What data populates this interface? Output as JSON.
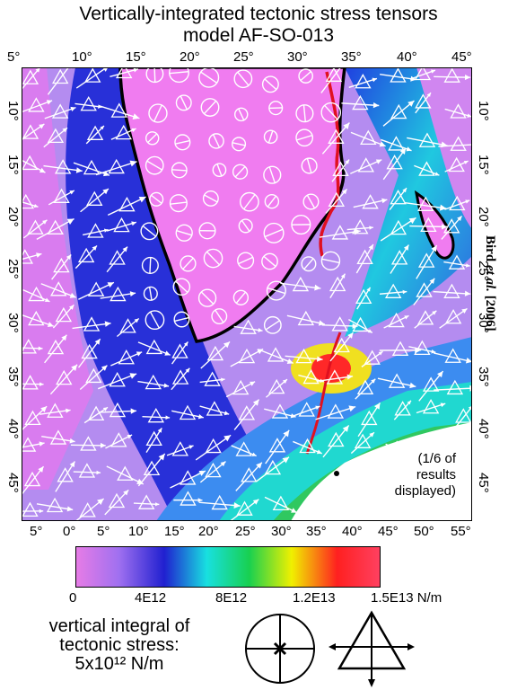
{
  "title": {
    "line1": "Vertically-integrated tectonic stress tensors",
    "line2": "model AF-SO-013"
  },
  "axes": {
    "top_longitudes": [
      "5°",
      "10°",
      "15°",
      "20°",
      "25°",
      "30°",
      "35°",
      "40°",
      "45°"
    ],
    "bottom_longitudes": [
      "5°",
      "0°",
      "5°",
      "10°",
      "15°",
      "20°",
      "25°",
      "30°",
      "35°",
      "40°",
      "45°",
      "50°",
      "55°"
    ],
    "left_latitudes": [
      "10°",
      "15°",
      "20°",
      "25°",
      "30°",
      "35°",
      "40°",
      "45°"
    ],
    "right_latitudes": [
      "10°",
      "15°",
      "20°",
      "25°",
      "30°",
      "35°",
      "40°",
      "45°"
    ]
  },
  "credit": {
    "author": "Bird ",
    "etal": "et al.",
    "year": " [2006]"
  },
  "note": {
    "line1": "(1/6 of",
    "line2": "results",
    "line3": "displayed)"
  },
  "colorbar": {
    "labels": [
      "0",
      "4E12",
      "8E12",
      "1.2E13",
      "1.5E13 N/m"
    ],
    "colors": [
      "#e67ce6",
      "#a070f0",
      "#2020d0",
      "#18e0e0",
      "#18d050",
      "#f0f000",
      "#ff2020",
      "#ff4060"
    ]
  },
  "legend": {
    "line1": "vertical integral of",
    "line2": "tectonic stress:",
    "line3": "5x10¹² N/m"
  },
  "map_colors": {
    "land": "#f07cf0",
    "ocean": "#b48cf0",
    "ridge_band": "#2830d8",
    "coast": "#000000",
    "plate_boundary": "#e01020",
    "symbols": "#ffffff"
  }
}
